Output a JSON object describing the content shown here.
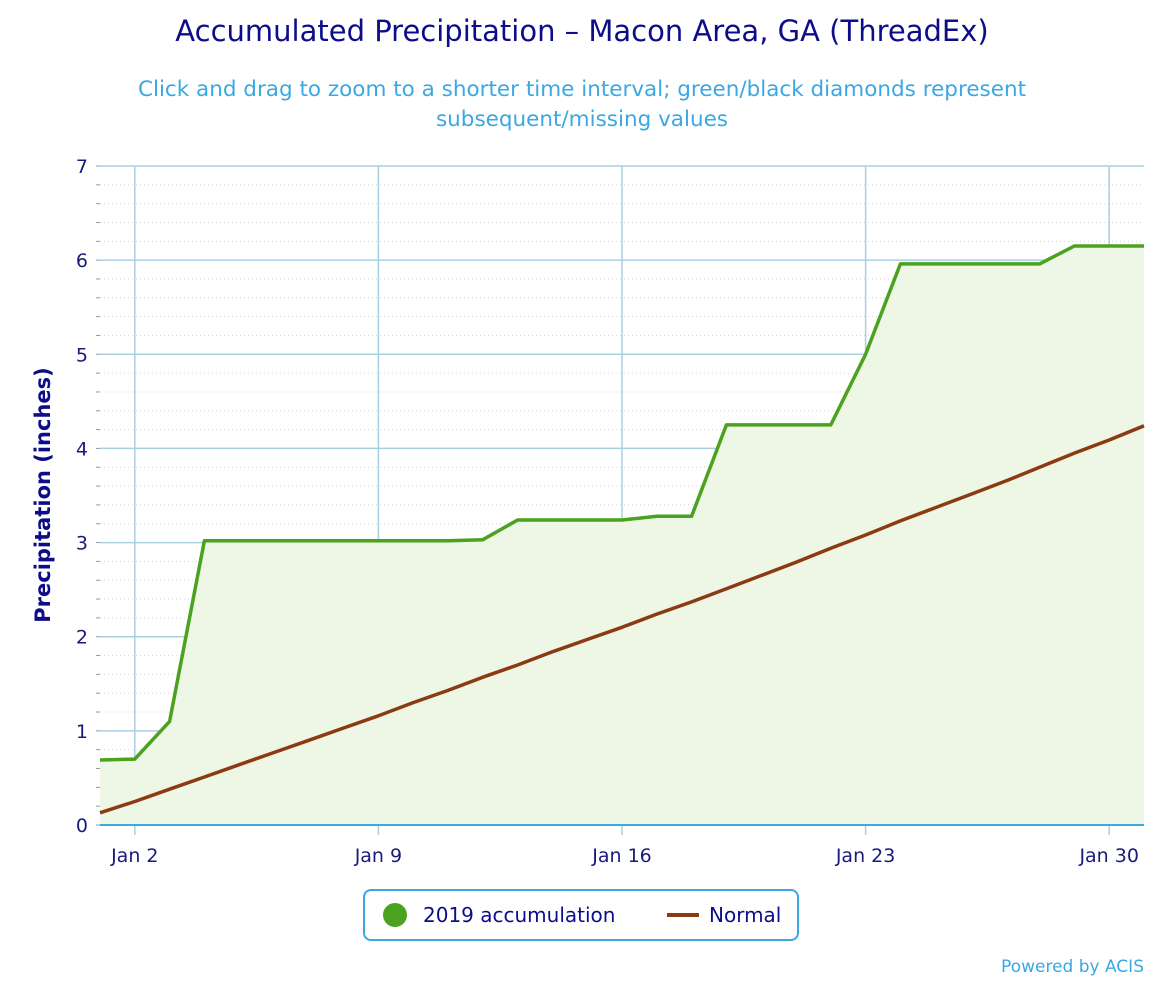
{
  "chart_data": {
    "type": "area",
    "title": "Accumulated Precipitation – Macon Area, GA (ThreadEx)",
    "subtitle": "Click and drag to zoom to a shorter time interval; green/black diamonds represent subsequent/missing values",
    "ylabel": "Precipitation (inches)",
    "xlabel": "",
    "ylim": [
      0,
      7
    ],
    "xlim": [
      "2019-01-01",
      "2019-01-31"
    ],
    "y_ticks": [
      0,
      1,
      2,
      3,
      4,
      5,
      6,
      7
    ],
    "x_ticks": [
      "2019-01-02",
      "2019-01-09",
      "2019-01-16",
      "2019-01-23",
      "2019-01-30"
    ],
    "x_tick_labels": [
      "Jan 2",
      "Jan 9",
      "Jan 16",
      "Jan 23",
      "Jan 30"
    ],
    "grid": true,
    "legend_position": "bottom-center",
    "series": [
      {
        "name": "2019 accumulation",
        "color": "#4aa21e",
        "fill": "#eef6e6",
        "x": [
          "2019-01-01",
          "2019-01-02",
          "2019-01-03",
          "2019-01-04",
          "2019-01-05",
          "2019-01-06",
          "2019-01-07",
          "2019-01-08",
          "2019-01-09",
          "2019-01-10",
          "2019-01-11",
          "2019-01-12",
          "2019-01-13",
          "2019-01-14",
          "2019-01-15",
          "2019-01-16",
          "2019-01-17",
          "2019-01-18",
          "2019-01-19",
          "2019-01-20",
          "2019-01-21",
          "2019-01-22",
          "2019-01-23",
          "2019-01-24",
          "2019-01-25",
          "2019-01-26",
          "2019-01-27",
          "2019-01-28",
          "2019-01-29",
          "2019-01-30",
          "2019-01-31"
        ],
        "values": [
          0.69,
          0.7,
          1.1,
          3.02,
          3.02,
          3.02,
          3.02,
          3.02,
          3.02,
          3.02,
          3.02,
          3.03,
          3.24,
          3.24,
          3.24,
          3.24,
          3.28,
          3.28,
          4.25,
          4.25,
          4.25,
          4.25,
          5.0,
          5.96,
          5.96,
          5.96,
          5.96,
          5.96,
          6.15,
          6.15,
          6.15
        ]
      },
      {
        "name": "Normal",
        "color": "#8b3a12",
        "x": [
          "2019-01-01",
          "2019-01-02",
          "2019-01-03",
          "2019-01-04",
          "2019-01-05",
          "2019-01-06",
          "2019-01-07",
          "2019-01-08",
          "2019-01-09",
          "2019-01-10",
          "2019-01-11",
          "2019-01-12",
          "2019-01-13",
          "2019-01-14",
          "2019-01-15",
          "2019-01-16",
          "2019-01-17",
          "2019-01-18",
          "2019-01-19",
          "2019-01-20",
          "2019-01-21",
          "2019-01-22",
          "2019-01-23",
          "2019-01-24",
          "2019-01-25",
          "2019-01-26",
          "2019-01-27",
          "2019-01-28",
          "2019-01-29",
          "2019-01-30",
          "2019-01-31"
        ],
        "values": [
          0.13,
          0.25,
          0.38,
          0.51,
          0.64,
          0.77,
          0.9,
          1.03,
          1.16,
          1.3,
          1.43,
          1.57,
          1.7,
          1.84,
          1.97,
          2.1,
          2.24,
          2.37,
          2.51,
          2.65,
          2.79,
          2.94,
          3.08,
          3.23,
          3.37,
          3.51,
          3.65,
          3.8,
          3.95,
          4.09,
          4.24
        ]
      }
    ]
  },
  "credits": "Powered by ACIS"
}
